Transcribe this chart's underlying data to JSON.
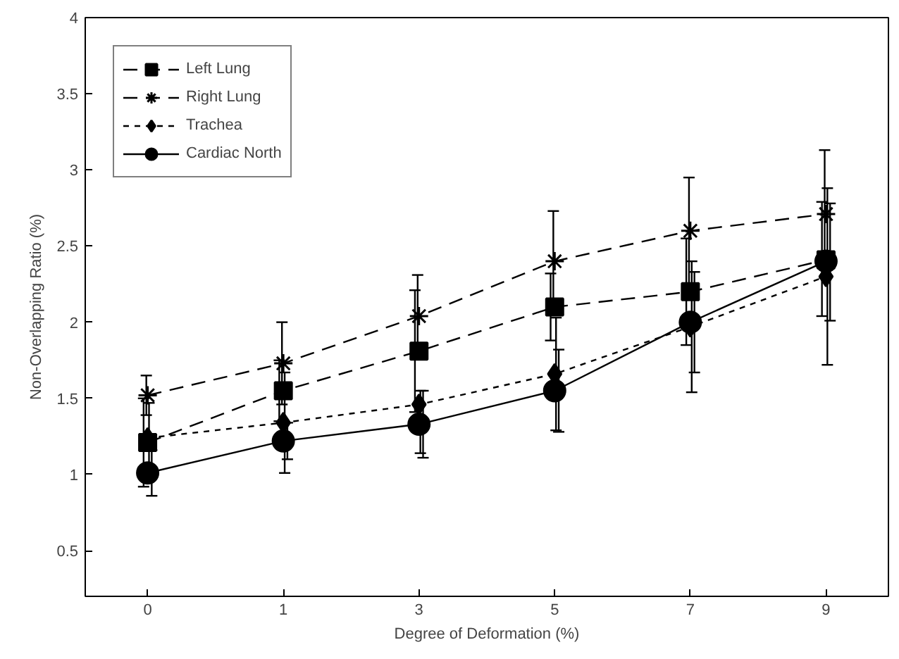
{
  "chart_data": {
    "type": "line",
    "xlabel": "Degree of Deformation (%)",
    "ylabel": "Non-Overlapping Ratio (%)",
    "categories": [
      "0",
      "1",
      "3",
      "5",
      "7",
      "9"
    ],
    "ylim": [
      0.2,
      4
    ],
    "yticks": [
      0.5,
      1,
      1.5,
      2,
      2.5,
      3,
      3.5,
      4
    ],
    "grid": false,
    "legend": "top left",
    "series": [
      {
        "name": "Left Lung",
        "color": "#000000",
        "marker": "square",
        "line_style": "dashed",
        "values": [
          1.21,
          1.55,
          1.81,
          2.1,
          2.2,
          2.41
        ],
        "errors": [
          0.29,
          0.2,
          0.4,
          0.22,
          0.35,
          [
            2.04,
            2.79
          ]
        ]
      },
      {
        "name": "Right Lung",
        "color": "#000000",
        "marker": "cross",
        "line_style": "dashed",
        "values": [
          1.52,
          1.73,
          2.04,
          2.4,
          2.6,
          2.71
        ],
        "errors": [
          0.13,
          0.27,
          0.27,
          0.33,
          0.35,
          0.42
        ]
      },
      {
        "name": "Trachea",
        "color": "#000000",
        "marker": "diamond",
        "line_style": "dotted",
        "values": [
          1.24,
          1.34,
          1.46,
          1.66,
          1.97,
          2.3
        ],
        "errors": [
          0.23,
          0.33,
          [
            1.14,
            1.55
          ],
          0.37,
          0.43,
          0.58
        ]
      },
      {
        "name": "Cardiac North",
        "color": "#000000",
        "marker": "circle",
        "line_style": "solid",
        "values": [
          1.01,
          1.22,
          1.33,
          1.55,
          2.0,
          2.4
        ],
        "errors": [
          0.15,
          0.12,
          0.22,
          0.27,
          0.33,
          [
            2.01,
            2.78
          ]
        ]
      }
    ]
  }
}
